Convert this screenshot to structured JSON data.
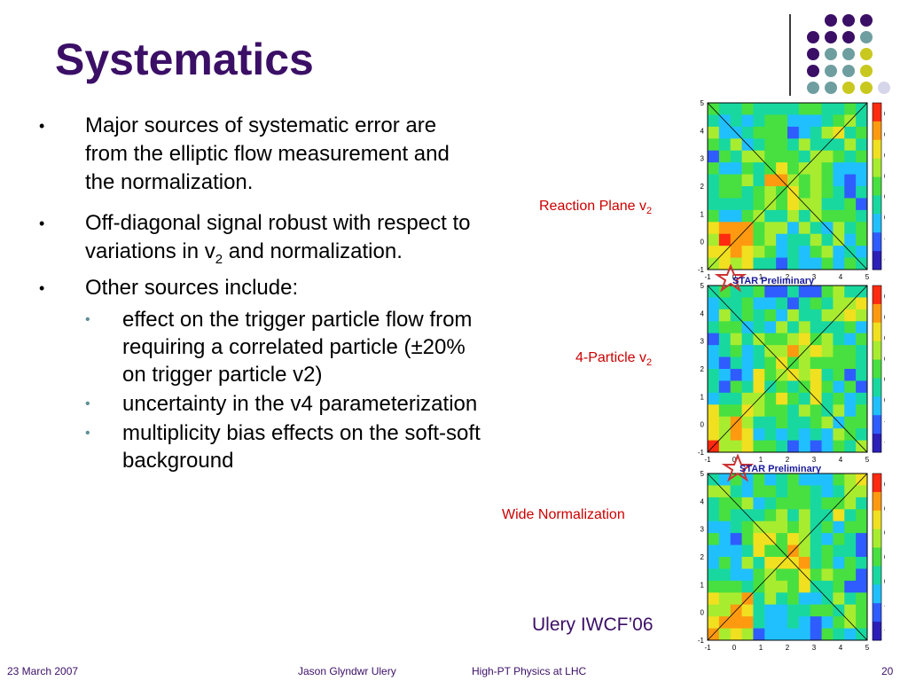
{
  "slide": {
    "title": "Systematics",
    "bullets": [
      "Major sources of systematic error are from the elliptic flow measurement and the normalization.",
      "Off-diagonal signal robust with respect to variations in v",
      "Other sources include:"
    ],
    "bullet2_sub": "2",
    "bullet2_tail": " and normalization.",
    "subbullets": [
      " effect on the trigger particle flow from requiring a correlated particle (±20% on trigger particle v2)",
      "uncertainty in the v4 parameterization",
      "multiplicity bias effects on the soft-soft background"
    ],
    "bullet_marker": "•"
  },
  "figures": {
    "captions": {
      "reaction_plane": "Reaction Plane v",
      "four_particle": "4-Particle v",
      "subscript": "2",
      "wide": "Wide Normalization"
    },
    "credit": "Ulery IWCF’06",
    "star_label": "STAR Preliminary",
    "axis_ticks": [
      "-1",
      "0",
      "1",
      "2",
      "3",
      "4",
      "5"
    ],
    "colorbar_ticks_1": [
      "0.5",
      "0.4",
      "0.3",
      "0.2",
      "0.1",
      "0",
      "-0.1",
      "-0.2"
    ],
    "colorbar_ticks_2": [
      "0.5",
      "0.4",
      "0.3",
      "0.2",
      "0.1",
      "0",
      "-0.1",
      "-0.2"
    ],
    "colorbar_ticks_3": [
      "0.4",
      "0.3",
      "0.2",
      "0.1",
      "0",
      "-0.1",
      "-0.2"
    ]
  },
  "footer": {
    "date": "23 March 2007",
    "author": "Jason Glyndwr Ulery",
    "event": "High-PT Physics at LHC",
    "page": "20"
  },
  "colors": {
    "title": "#3b0f66",
    "caption": "#cc0000",
    "dot_purple": "#3b0f66",
    "dot_teal": "#6f9ea0",
    "dot_yellow": "#c9c81e",
    "dot_light": "#d6d6ea"
  }
}
